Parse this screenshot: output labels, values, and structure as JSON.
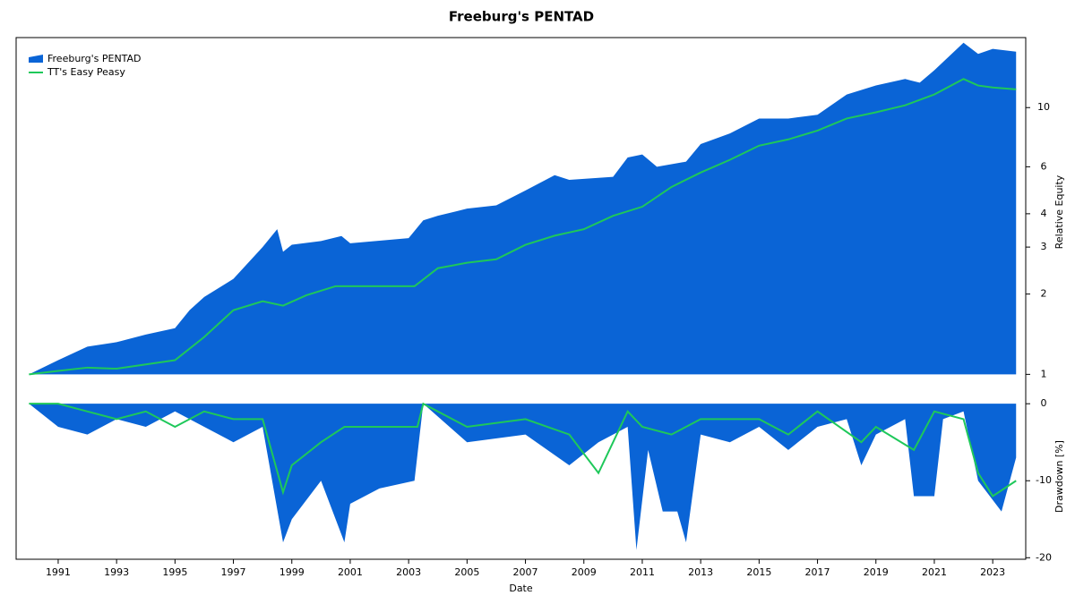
{
  "chart_data": [
    {
      "type": "area",
      "title": "Freeburg's PENTAD",
      "ylabel": "Relative Equity",
      "yscale": "log",
      "legend": "upper left",
      "grid": false,
      "xlim": [
        1989.56,
        2024.13
      ],
      "ylim": [
        0.9,
        18.3
      ],
      "yticks": [
        1,
        2,
        3,
        4,
        6,
        10
      ],
      "series": [
        {
          "name": "Freeburg's PENTAD",
          "kind": "area",
          "color": "#0a64d6",
          "x": [
            1990,
            1991,
            1992,
            1993,
            1994,
            1995,
            1995.5,
            1996,
            1997,
            1998,
            1998.5,
            1998.7,
            1999,
            2000,
            2000.7,
            2001,
            2003,
            2003.5,
            2004,
            2005,
            2006,
            2007,
            2008,
            2008.5,
            2010,
            2010.5,
            2011,
            2011.5,
            2012.5,
            2013,
            2014,
            2015,
            2016,
            2017,
            2018,
            2019,
            2020,
            2020.5,
            2021,
            2022,
            2022.5,
            2023,
            2023.8
          ],
          "values": [
            1,
            1.13,
            1.27,
            1.32,
            1.41,
            1.49,
            1.74,
            1.95,
            2.28,
            3.0,
            3.5,
            2.88,
            3.06,
            3.16,
            3.3,
            3.1,
            3.24,
            3.78,
            3.93,
            4.18,
            4.3,
            4.89,
            5.58,
            5.36,
            5.5,
            6.5,
            6.67,
            6.0,
            6.27,
            7.3,
            8.0,
            9.1,
            9.1,
            9.4,
            11.2,
            12.1,
            12.8,
            12.4,
            13.8,
            17.5,
            15.9,
            16.6,
            16.2
          ]
        },
        {
          "name": "TT's Easy Peasy",
          "kind": "line",
          "color": "#1ec85a",
          "x": [
            1990,
            1991,
            1992,
            1993,
            1994,
            1995,
            1996,
            1997,
            1998,
            1998.7,
            1999.5,
            2000.5,
            2003.2,
            2004,
            2005,
            2006,
            2007,
            2008,
            2009,
            2010,
            2011,
            2012,
            2013,
            2014,
            2015,
            2016,
            2017,
            2018,
            2019,
            2020,
            2021,
            2022,
            2022.5,
            2023,
            2023.8
          ],
          "values": [
            1,
            1.03,
            1.06,
            1.05,
            1.09,
            1.13,
            1.38,
            1.74,
            1.88,
            1.81,
            1.98,
            2.14,
            2.14,
            2.5,
            2.62,
            2.7,
            3.06,
            3.31,
            3.5,
            3.93,
            4.25,
            5.04,
            5.71,
            6.37,
            7.2,
            7.6,
            8.2,
            9.1,
            9.6,
            10.2,
            11.2,
            12.8,
            12.1,
            11.9,
            11.7
          ]
        }
      ]
    },
    {
      "type": "area",
      "xlabel": "Date",
      "ylabel": "Drawdown [%]",
      "grid": false,
      "xlim": [
        1989.56,
        2024.13
      ],
      "ylim": [
        -20.2,
        1.3
      ],
      "xticks": [
        1991,
        1993,
        1995,
        1997,
        1999,
        2001,
        2003,
        2005,
        2007,
        2009,
        2011,
        2013,
        2015,
        2017,
        2019,
        2021,
        2023
      ],
      "yticks": [
        0,
        -10,
        -20
      ],
      "series": [
        {
          "name": "Freeburg's PENTAD",
          "kind": "area",
          "color": "#0a64d6",
          "x": [
            1990,
            1991,
            1992,
            1993,
            1994,
            1995,
            1996,
            1997,
            1998,
            1998.7,
            1999,
            2000,
            2000.8,
            2001,
            2002,
            2003.2,
            2003.5,
            2005,
            2007,
            2008.5,
            2009.5,
            2010.5,
            2010.8,
            2011.2,
            2011.7,
            2012.2,
            2012.5,
            2013,
            2014,
            2015,
            2016,
            2017,
            2018,
            2018.5,
            2019,
            2020,
            2020.3,
            2021,
            2021.3,
            2022,
            2022.5,
            2023.3,
            2023.8
          ],
          "values": [
            0,
            -3,
            -4,
            -2,
            -3,
            -1,
            -3,
            -5,
            -3,
            -18,
            -15,
            -10,
            -18,
            -13,
            -11,
            -10,
            0,
            -5,
            -4,
            -8,
            -5,
            -3,
            -19,
            -6,
            -14,
            -14,
            -18,
            -4,
            -5,
            -3,
            -6,
            -3,
            -2,
            -8,
            -4,
            -2,
            -12,
            -12,
            -2,
            -1,
            -10,
            -14,
            -7
          ]
        },
        {
          "name": "TT's Easy Peasy",
          "kind": "line",
          "color": "#1ec85a",
          "x": [
            1990,
            1991,
            1992,
            1993,
            1994,
            1995,
            1996,
            1997,
            1998,
            1998.7,
            1999,
            2000,
            2000.8,
            2003.3,
            2003.5,
            2005,
            2007,
            2008.5,
            2009.5,
            2010.5,
            2011,
            2012,
            2013,
            2015,
            2016,
            2017,
            2018.5,
            2019,
            2020.3,
            2021,
            2022,
            2022.5,
            2023,
            2023.8
          ],
          "values": [
            0,
            0,
            -1,
            -2,
            -1,
            -3,
            -1,
            -2,
            -2,
            -11.5,
            -8,
            -5,
            -3,
            -3,
            0,
            -3,
            -2,
            -4,
            -9,
            -1,
            -3,
            -4,
            -2,
            -2,
            -4,
            -1,
            -5,
            -3,
            -6,
            -1,
            -2,
            -9,
            -12,
            -10
          ]
        }
      ]
    }
  ]
}
